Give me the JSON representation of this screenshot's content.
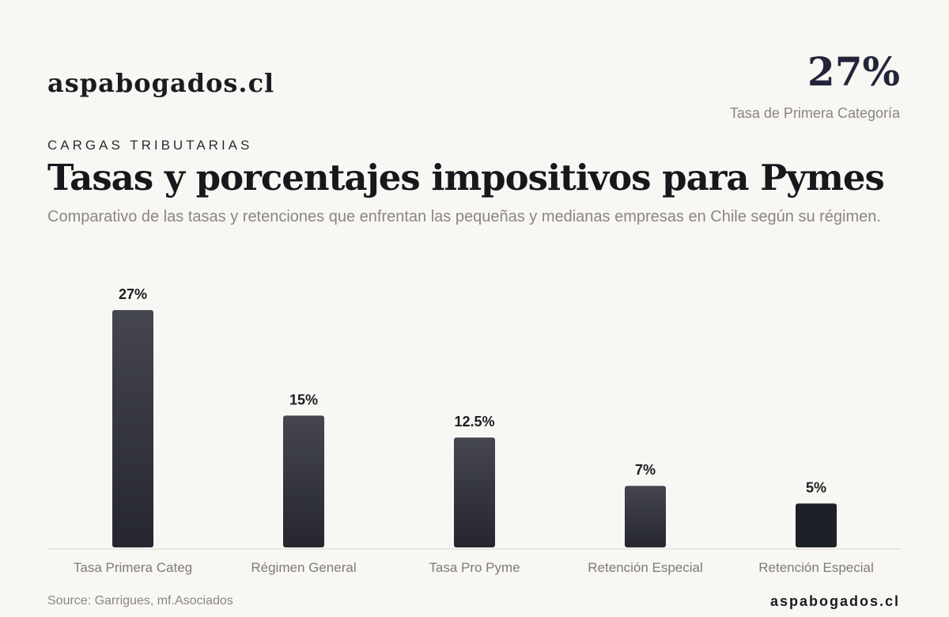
{
  "header": {
    "brand": "aspabogados.cl",
    "kpi_value": "27%",
    "kpi_label": "Tasa de Primera Categoría",
    "eyebrow": "CARGAS TRIBUTARIAS",
    "title": "Tasas y porcentajes impositivos para Pymes",
    "subtitle": "Comparativo de las tasas y retenciones que enfrentan las pequeñas y medianas empresas en Chile según su régimen."
  },
  "footer": {
    "source": "Source: Garrigues, mf.Asociados",
    "brand": "aspabogados.cl"
  },
  "colors": {
    "bar_top": "#45464f",
    "bar_bottom": "#25262f",
    "bar_last": "#1e2029",
    "label": "#1b1c20",
    "category": "#7f7b75",
    "baseline": "#dcdad4"
  },
  "chart_data": {
    "type": "bar",
    "categories": [
      "Tasa Primera Categ",
      "Régimen General",
      "Tasa Pro Pyme",
      "Retención Especial",
      "Retención Especial"
    ],
    "values": [
      27,
      15,
      12.5,
      7,
      5
    ],
    "value_labels": [
      "27%",
      "15%",
      "12.5%",
      "7%",
      "5%"
    ],
    "ylim": [
      0,
      27
    ],
    "grid": false
  }
}
